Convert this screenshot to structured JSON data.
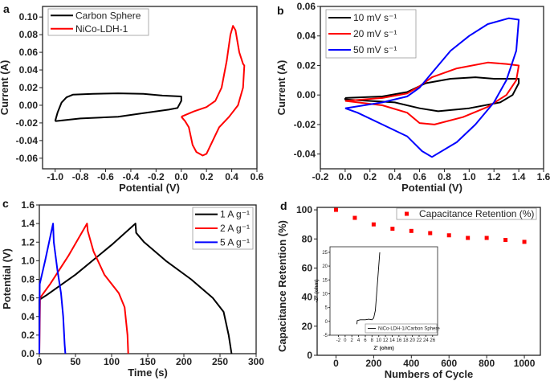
{
  "chart_data": [
    {
      "panel": "a",
      "type": "line",
      "xlabel": "Potential (V)",
      "ylabel": "Current (A)",
      "xlim": [
        -1.1,
        0.6
      ],
      "ylim": [
        -0.072,
        0.112
      ],
      "xticks": [
        "-1.0",
        "-0.8",
        "-0.6",
        "-0.4",
        "-0.2",
        "0.0",
        "0.2",
        "0.4",
        "0.6"
      ],
      "yticks": [
        "-0.06",
        "-0.04",
        "-0.02",
        "0.00",
        "0.02",
        "0.04",
        "0.06",
        "0.08",
        "0.10"
      ],
      "legend": "top-left",
      "series": [
        {
          "name": "Carbon Sphere",
          "color": "#000000",
          "points": [
            [
              -1.0,
              -0.018
            ],
            [
              -0.98,
              -0.008
            ],
            [
              -0.95,
              0.003
            ],
            [
              -0.91,
              0.009
            ],
            [
              -0.86,
              0.012
            ],
            [
              -0.7,
              0.013
            ],
            [
              -0.5,
              0.0135
            ],
            [
              -0.3,
              0.013
            ],
            [
              -0.15,
              0.011
            ],
            [
              0.0,
              0.01
            ],
            [
              0.0,
              0.005
            ],
            [
              -0.03,
              -0.003
            ],
            [
              -0.1,
              -0.005
            ],
            [
              -0.3,
              -0.009
            ],
            [
              -0.5,
              -0.013
            ],
            [
              -0.8,
              -0.015
            ],
            [
              -1.0,
              -0.018
            ]
          ]
        },
        {
          "name": "NiCo-LDH-1",
          "color": "#ff0000",
          "points": [
            [
              0.0,
              -0.013
            ],
            [
              0.1,
              -0.007
            ],
            [
              0.2,
              -0.002
            ],
            [
              0.27,
              0.005
            ],
            [
              0.32,
              0.02
            ],
            [
              0.36,
              0.05
            ],
            [
              0.39,
              0.08
            ],
            [
              0.41,
              0.09
            ],
            [
              0.43,
              0.085
            ],
            [
              0.46,
              0.06
            ],
            [
              0.49,
              0.047
            ],
            [
              0.5,
              0.045
            ],
            [
              0.49,
              0.02
            ],
            [
              0.45,
              0.0
            ],
            [
              0.38,
              -0.013
            ],
            [
              0.3,
              -0.025
            ],
            [
              0.25,
              -0.04
            ],
            [
              0.2,
              -0.055
            ],
            [
              0.17,
              -0.057
            ],
            [
              0.12,
              -0.053
            ],
            [
              0.09,
              -0.045
            ],
            [
              0.06,
              -0.025
            ],
            [
              0.03,
              -0.018
            ],
            [
              0.0,
              -0.013
            ]
          ]
        }
      ]
    },
    {
      "panel": "b",
      "type": "line",
      "xlabel": "Potential (V)",
      "ylabel": "Current (A)",
      "xlim": [
        -0.2,
        1.6
      ],
      "ylim": [
        -0.05,
        0.06
      ],
      "xticks": [
        "-0.2",
        "0.0",
        "0.2",
        "0.4",
        "0.6",
        "0.8",
        "1.0",
        "1.2",
        "1.4",
        "1.6"
      ],
      "yticks": [
        "-0.04",
        "-0.02",
        "0.00",
        "0.02",
        "0.04",
        "0.06"
      ],
      "legend": "top-left",
      "series": [
        {
          "name": "10 mV s⁻¹",
          "color": "#000000",
          "points": [
            [
              0,
              -0.002
            ],
            [
              0.3,
              -0.001
            ],
            [
              0.5,
              0.002
            ],
            [
              0.65,
              0.008
            ],
            [
              0.85,
              0.011
            ],
            [
              1.05,
              0.012
            ],
            [
              1.2,
              0.011
            ],
            [
              1.4,
              0.011
            ],
            [
              1.4,
              0.008
            ],
            [
              1.35,
              0.0
            ],
            [
              1.25,
              -0.005
            ],
            [
              1.0,
              -0.009
            ],
            [
              0.75,
              -0.011
            ],
            [
              0.6,
              -0.009
            ],
            [
              0.4,
              -0.005
            ],
            [
              0,
              -0.003
            ],
            [
              0,
              -0.002
            ]
          ]
        },
        {
          "name": "20 mV s⁻¹",
          "color": "#ff0000",
          "points": [
            [
              0,
              -0.004
            ],
            [
              0.3,
              -0.002
            ],
            [
              0.5,
              0.001
            ],
            [
              0.6,
              0.006
            ],
            [
              0.7,
              0.012
            ],
            [
              0.9,
              0.018
            ],
            [
              1.15,
              0.022
            ],
            [
              1.3,
              0.021
            ],
            [
              1.4,
              0.02
            ],
            [
              1.38,
              0.01
            ],
            [
              1.3,
              0.0
            ],
            [
              1.15,
              -0.008
            ],
            [
              0.95,
              -0.015
            ],
            [
              0.72,
              -0.02
            ],
            [
              0.6,
              -0.019
            ],
            [
              0.5,
              -0.012
            ],
            [
              0.3,
              -0.007
            ],
            [
              0,
              -0.004
            ]
          ]
        },
        {
          "name": "50 mV s⁻¹",
          "color": "#0000ff",
          "points": [
            [
              0,
              -0.009
            ],
            [
              0.3,
              -0.005
            ],
            [
              0.5,
              -0.001
            ],
            [
              0.6,
              0.005
            ],
            [
              0.7,
              0.015
            ],
            [
              0.85,
              0.03
            ],
            [
              1.0,
              0.04
            ],
            [
              1.15,
              0.048
            ],
            [
              1.32,
              0.052
            ],
            [
              1.4,
              0.051
            ],
            [
              1.38,
              0.03
            ],
            [
              1.3,
              0.01
            ],
            [
              1.2,
              -0.005
            ],
            [
              1.05,
              -0.02
            ],
            [
              0.9,
              -0.032
            ],
            [
              0.7,
              -0.042
            ],
            [
              0.62,
              -0.038
            ],
            [
              0.5,
              -0.028
            ],
            [
              0.3,
              -0.02
            ],
            [
              0.1,
              -0.012
            ],
            [
              0,
              -0.009
            ]
          ]
        }
      ]
    },
    {
      "panel": "c",
      "type": "line",
      "xlabel": "Time (s)",
      "ylabel": "Potential (V)",
      "xlim": [
        0,
        300
      ],
      "ylim": [
        0,
        1.6
      ],
      "xticks": [
        "0",
        "50",
        "100",
        "150",
        "200",
        "250",
        "300"
      ],
      "yticks": [
        "0.0",
        "0.2",
        "0.4",
        "0.6",
        "0.8",
        "1.0",
        "1.2",
        "1.4",
        "1.6"
      ],
      "legend": "top-right",
      "series": [
        {
          "name": "1 A g⁻¹",
          "color": "#000000",
          "points": [
            [
              0,
              0
            ],
            [
              0,
              0.58
            ],
            [
              10,
              0.63
            ],
            [
              50,
              0.85
            ],
            [
              100,
              1.17
            ],
            [
              133,
              1.4
            ],
            [
              134,
              1.3
            ],
            [
              145,
              1.2
            ],
            [
              175,
              1.0
            ],
            [
              210,
              0.8
            ],
            [
              240,
              0.6
            ],
            [
              255,
              0.45
            ],
            [
              262,
              0.2
            ],
            [
              266,
              0
            ]
          ]
        },
        {
          "name": "2 A g⁻¹",
          "color": "#ff0000",
          "points": [
            [
              0,
              0
            ],
            [
              1,
              0.6
            ],
            [
              15,
              0.75
            ],
            [
              40,
              1.05
            ],
            [
              66,
              1.4
            ],
            [
              67,
              1.32
            ],
            [
              75,
              1.1
            ],
            [
              90,
              0.85
            ],
            [
              110,
              0.65
            ],
            [
              118,
              0.5
            ],
            [
              122,
              0.2
            ],
            [
              123,
              0
            ]
          ]
        },
        {
          "name": "5 A g⁻¹",
          "color": "#0000ff",
          "points": [
            [
              0,
              0
            ],
            [
              0.5,
              0.75
            ],
            [
              8,
              1.0
            ],
            [
              19,
              1.4
            ],
            [
              20,
              1.2
            ],
            [
              25,
              0.9
            ],
            [
              30,
              0.65
            ],
            [
              33,
              0.4
            ],
            [
              35,
              0.1
            ],
            [
              36,
              0
            ]
          ]
        }
      ]
    },
    {
      "panel": "d",
      "type": "scatter",
      "xlabel": "Numbers of Cycle",
      "ylabel": "Capacitance Retention (%)",
      "xlim": [
        -100,
        1085
      ],
      "ylim": [
        0,
        101.7
      ],
      "xticks": [
        "0",
        "200",
        "400",
        "600",
        "800",
        "1000"
      ],
      "yticks": [
        "0",
        "20",
        "40",
        "60",
        "80",
        "100"
      ],
      "legend": "top-right",
      "series": [
        {
          "name": "Capacitance Retention (%)",
          "color": "#ff0000",
          "x": [
            0,
            100,
            200,
            300,
            400,
            500,
            600,
            700,
            800,
            900,
            1000
          ],
          "y": [
            100,
            94.5,
            90,
            87,
            85.5,
            84,
            82.5,
            80.7,
            80.7,
            79.3,
            78
          ]
        }
      ],
      "inset": {
        "type": "line",
        "xlabel": "Z' (ohm)",
        "ylabel": "-Z'' (ohm)",
        "xlim": [
          -4.5,
          27.5
        ],
        "ylim": [
          -5,
          27
        ],
        "xticks": [
          "-2",
          "0",
          "2",
          "4",
          "6",
          "8",
          "10",
          "12",
          "14",
          "16",
          "18",
          "20",
          "22",
          "24",
          "26"
        ],
        "yticks": [
          "-5",
          "0",
          "5",
          "10",
          "15",
          "20",
          "25"
        ],
        "legend": "bottom-right",
        "series": [
          {
            "name": "NiCo-LDH-1//Carbon Sphere",
            "color": "#000000",
            "points": [
              [
                3.5,
                -1
              ],
              [
                3.6,
                0.3
              ],
              [
                4.5,
                0.6
              ],
              [
                6,
                0.6
              ],
              [
                7,
                0.8
              ],
              [
                8,
                0.6
              ],
              [
                8.5,
                1.2
              ],
              [
                9,
                4
              ],
              [
                9.5,
                12
              ],
              [
                10,
                20
              ],
              [
                10.3,
                25
              ]
            ]
          }
        ]
      }
    }
  ]
}
